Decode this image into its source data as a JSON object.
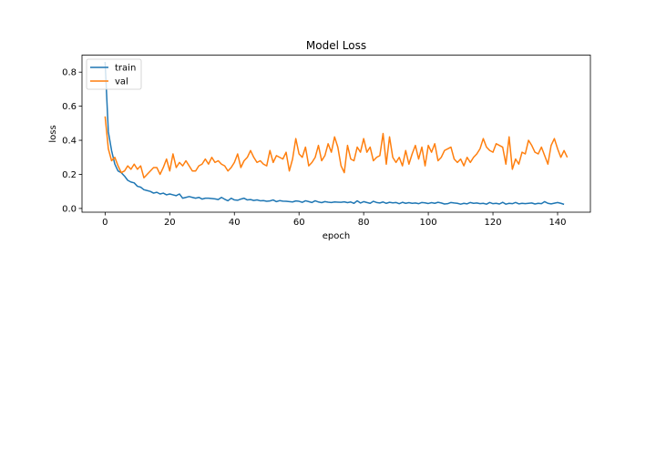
{
  "chart_data": {
    "type": "line",
    "title": "Model Loss",
    "xlabel": "epoch",
    "ylabel": "loss",
    "xlim": [
      -7.15,
      150.15
    ],
    "ylim": [
      -0.022,
      0.9
    ],
    "xticks": [
      0,
      20,
      40,
      60,
      80,
      100,
      120,
      140
    ],
    "yticks": [
      0.0,
      0.2,
      0.4,
      0.6,
      0.8
    ],
    "ytick_labels": [
      "0.0",
      "0.2",
      "0.4",
      "0.6",
      "0.8"
    ],
    "grid": false,
    "legend_position": "upper left",
    "series": [
      {
        "name": "train",
        "color": "#1f77b4",
        "values": [
          0.86,
          0.45,
          0.34,
          0.26,
          0.22,
          0.21,
          0.19,
          0.165,
          0.155,
          0.15,
          0.13,
          0.125,
          0.11,
          0.105,
          0.1,
          0.09,
          0.095,
          0.085,
          0.09,
          0.08,
          0.085,
          0.08,
          0.075,
          0.085,
          0.06,
          0.065,
          0.07,
          0.065,
          0.06,
          0.065,
          0.055,
          0.06,
          0.06,
          0.058,
          0.056,
          0.052,
          0.065,
          0.054,
          0.045,
          0.06,
          0.05,
          0.048,
          0.055,
          0.06,
          0.05,
          0.052,
          0.047,
          0.05,
          0.045,
          0.046,
          0.042,
          0.044,
          0.05,
          0.04,
          0.046,
          0.043,
          0.042,
          0.04,
          0.038,
          0.044,
          0.042,
          0.036,
          0.045,
          0.04,
          0.035,
          0.045,
          0.038,
          0.034,
          0.04,
          0.037,
          0.035,
          0.038,
          0.037,
          0.036,
          0.039,
          0.034,
          0.038,
          0.03,
          0.045,
          0.032,
          0.04,
          0.035,
          0.03,
          0.042,
          0.035,
          0.032,
          0.038,
          0.03,
          0.036,
          0.033,
          0.035,
          0.028,
          0.036,
          0.03,
          0.034,
          0.03,
          0.032,
          0.028,
          0.035,
          0.033,
          0.029,
          0.034,
          0.03,
          0.036,
          0.032,
          0.026,
          0.028,
          0.035,
          0.032,
          0.03,
          0.025,
          0.03,
          0.027,
          0.035,
          0.03,
          0.032,
          0.028,
          0.03,
          0.025,
          0.035,
          0.028,
          0.03,
          0.026,
          0.036,
          0.025,
          0.03,
          0.028,
          0.035,
          0.027,
          0.03,
          0.028,
          0.03,
          0.032,
          0.026,
          0.03,
          0.028,
          0.04,
          0.03,
          0.027,
          0.031,
          0.035,
          0.03,
          0.024
        ]
      },
      {
        "name": "val",
        "color": "#ff7f0e",
        "values": [
          0.54,
          0.35,
          0.28,
          0.3,
          0.25,
          0.21,
          0.22,
          0.25,
          0.23,
          0.26,
          0.23,
          0.25,
          0.18,
          0.2,
          0.22,
          0.24,
          0.24,
          0.2,
          0.24,
          0.29,
          0.22,
          0.32,
          0.24,
          0.27,
          0.25,
          0.28,
          0.25,
          0.22,
          0.22,
          0.25,
          0.26,
          0.29,
          0.26,
          0.3,
          0.27,
          0.28,
          0.26,
          0.25,
          0.22,
          0.24,
          0.27,
          0.32,
          0.24,
          0.28,
          0.3,
          0.34,
          0.3,
          0.27,
          0.28,
          0.26,
          0.25,
          0.34,
          0.27,
          0.31,
          0.3,
          0.29,
          0.33,
          0.22,
          0.29,
          0.41,
          0.32,
          0.3,
          0.36,
          0.25,
          0.27,
          0.3,
          0.37,
          0.28,
          0.31,
          0.38,
          0.33,
          0.42,
          0.36,
          0.25,
          0.21,
          0.37,
          0.29,
          0.28,
          0.36,
          0.33,
          0.41,
          0.33,
          0.36,
          0.28,
          0.3,
          0.31,
          0.44,
          0.26,
          0.42,
          0.3,
          0.27,
          0.3,
          0.25,
          0.34,
          0.26,
          0.32,
          0.37,
          0.29,
          0.36,
          0.25,
          0.37,
          0.33,
          0.38,
          0.28,
          0.3,
          0.34,
          0.35,
          0.36,
          0.29,
          0.27,
          0.29,
          0.25,
          0.3,
          0.27,
          0.3,
          0.32,
          0.35,
          0.41,
          0.36,
          0.34,
          0.33,
          0.38,
          0.37,
          0.36,
          0.26,
          0.42,
          0.23,
          0.29,
          0.26,
          0.33,
          0.32,
          0.4,
          0.37,
          0.33,
          0.32,
          0.36,
          0.31,
          0.26,
          0.37,
          0.41,
          0.35,
          0.3,
          0.34,
          0.3
        ]
      }
    ]
  }
}
